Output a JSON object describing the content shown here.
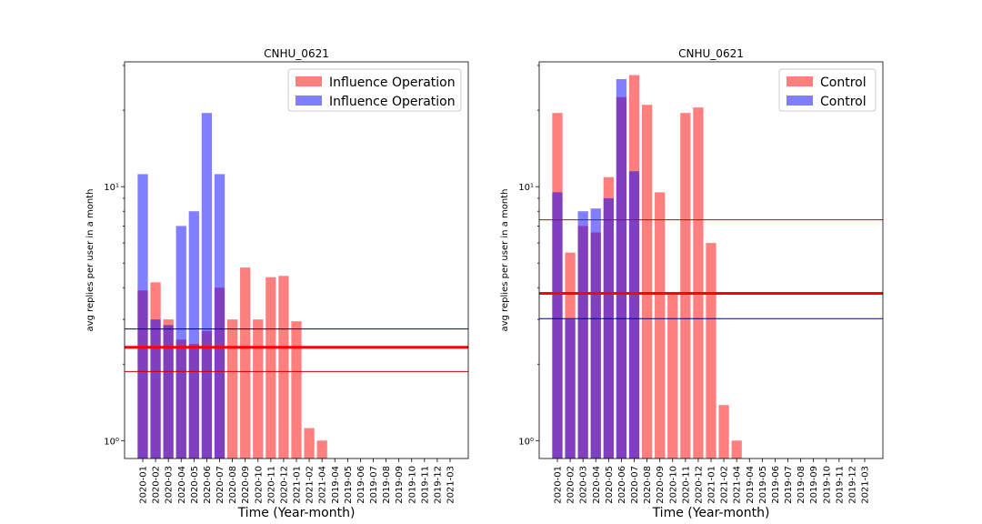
{
  "chart_data": [
    {
      "type": "bar",
      "title": "CNHU_0621",
      "xlabel": "Time (Year-month)",
      "ylabel": "avg replies per user in a month",
      "yscale": "log",
      "ylim": [
        0.85,
        31
      ],
      "ytick_labels": [
        "10⁰",
        "10¹"
      ],
      "categories": [
        "2020-01",
        "2020-02",
        "2020-03",
        "2020-04",
        "2020-05",
        "2020-06",
        "2020-07",
        "2020-08",
        "2020-09",
        "2020-10",
        "2020-11",
        "2020-12",
        "2021-01",
        "2021-02",
        "2021-04",
        "2019-04",
        "2019-05",
        "2019-06",
        "2019-07",
        "2019-08",
        "2019-09",
        "2019-10",
        "2019-11",
        "2019-12",
        "2021-03"
      ],
      "series": [
        {
          "name": "Influence Operation",
          "color": "#ff0000",
          "opacity": 0.5,
          "values": [
            3.9,
            4.2,
            3.0,
            2.5,
            2.4,
            2.7,
            4.0,
            3.0,
            4.8,
            3.0,
            4.4,
            4.45,
            2.95,
            1.12,
            1.0,
            null,
            null,
            null,
            null,
            null,
            null,
            null,
            null,
            null,
            null
          ]
        },
        {
          "name": "Influence Operation",
          "color": "#0000ff",
          "opacity": 0.5,
          "values": [
            11.2,
            3.0,
            2.85,
            7.0,
            8.0,
            19.5,
            11.2,
            null,
            null,
            null,
            null,
            null,
            null,
            null,
            null,
            null,
            null,
            null,
            null,
            null,
            null,
            null,
            null,
            null,
            null
          ]
        }
      ],
      "hlines": [
        {
          "value": 2.33,
          "color": "#ff0000",
          "width": "thick"
        },
        {
          "value": 2.75,
          "color": "#00008b",
          "width": "thin"
        },
        {
          "value": 1.87,
          "color": "#cc0000",
          "width": "thin"
        }
      ],
      "legend": "top-right"
    },
    {
      "type": "bar",
      "title": "CNHU_0621",
      "xlabel": "Time (Year-month)",
      "ylabel": "avg replies per user in a month",
      "yscale": "log",
      "ylim": [
        0.85,
        31
      ],
      "ytick_labels": [
        "10⁰",
        "10¹"
      ],
      "categories": [
        "2020-01",
        "2020-02",
        "2020-03",
        "2020-04",
        "2020-05",
        "2020-06",
        "2020-07",
        "2020-08",
        "2020-09",
        "2020-10",
        "2020-11",
        "2020-12",
        "2021-01",
        "2021-02",
        "2021-04",
        "2019-04",
        "2019-05",
        "2019-06",
        "2019-07",
        "2019-08",
        "2019-09",
        "2019-10",
        "2019-11",
        "2019-12",
        "2021-03"
      ],
      "series": [
        {
          "name": "Control",
          "color": "#ff0000",
          "opacity": 0.5,
          "values": [
            19.5,
            5.5,
            7.0,
            6.6,
            10.9,
            22.5,
            27.5,
            21.0,
            9.5,
            3.8,
            19.5,
            20.5,
            6.0,
            1.38,
            1.0,
            null,
            null,
            null,
            null,
            null,
            null,
            null,
            null,
            null,
            null
          ]
        },
        {
          "name": "Control",
          "color": "#0000ff",
          "opacity": 0.5,
          "values": [
            9.5,
            3.0,
            8.0,
            8.2,
            9.0,
            26.5,
            11.5,
            null,
            null,
            null,
            null,
            null,
            null,
            null,
            null,
            null,
            null,
            null,
            null,
            null,
            null,
            null,
            null,
            null,
            null
          ]
        }
      ],
      "hlines": [
        {
          "value": 3.8,
          "color": "#ff0000",
          "width": "thick"
        },
        {
          "value": 7.4,
          "color": "#cc0000",
          "width": "thin"
        },
        {
          "value": 3.02,
          "color": "#00008b",
          "width": "thin"
        }
      ],
      "legend": "top-right"
    }
  ]
}
